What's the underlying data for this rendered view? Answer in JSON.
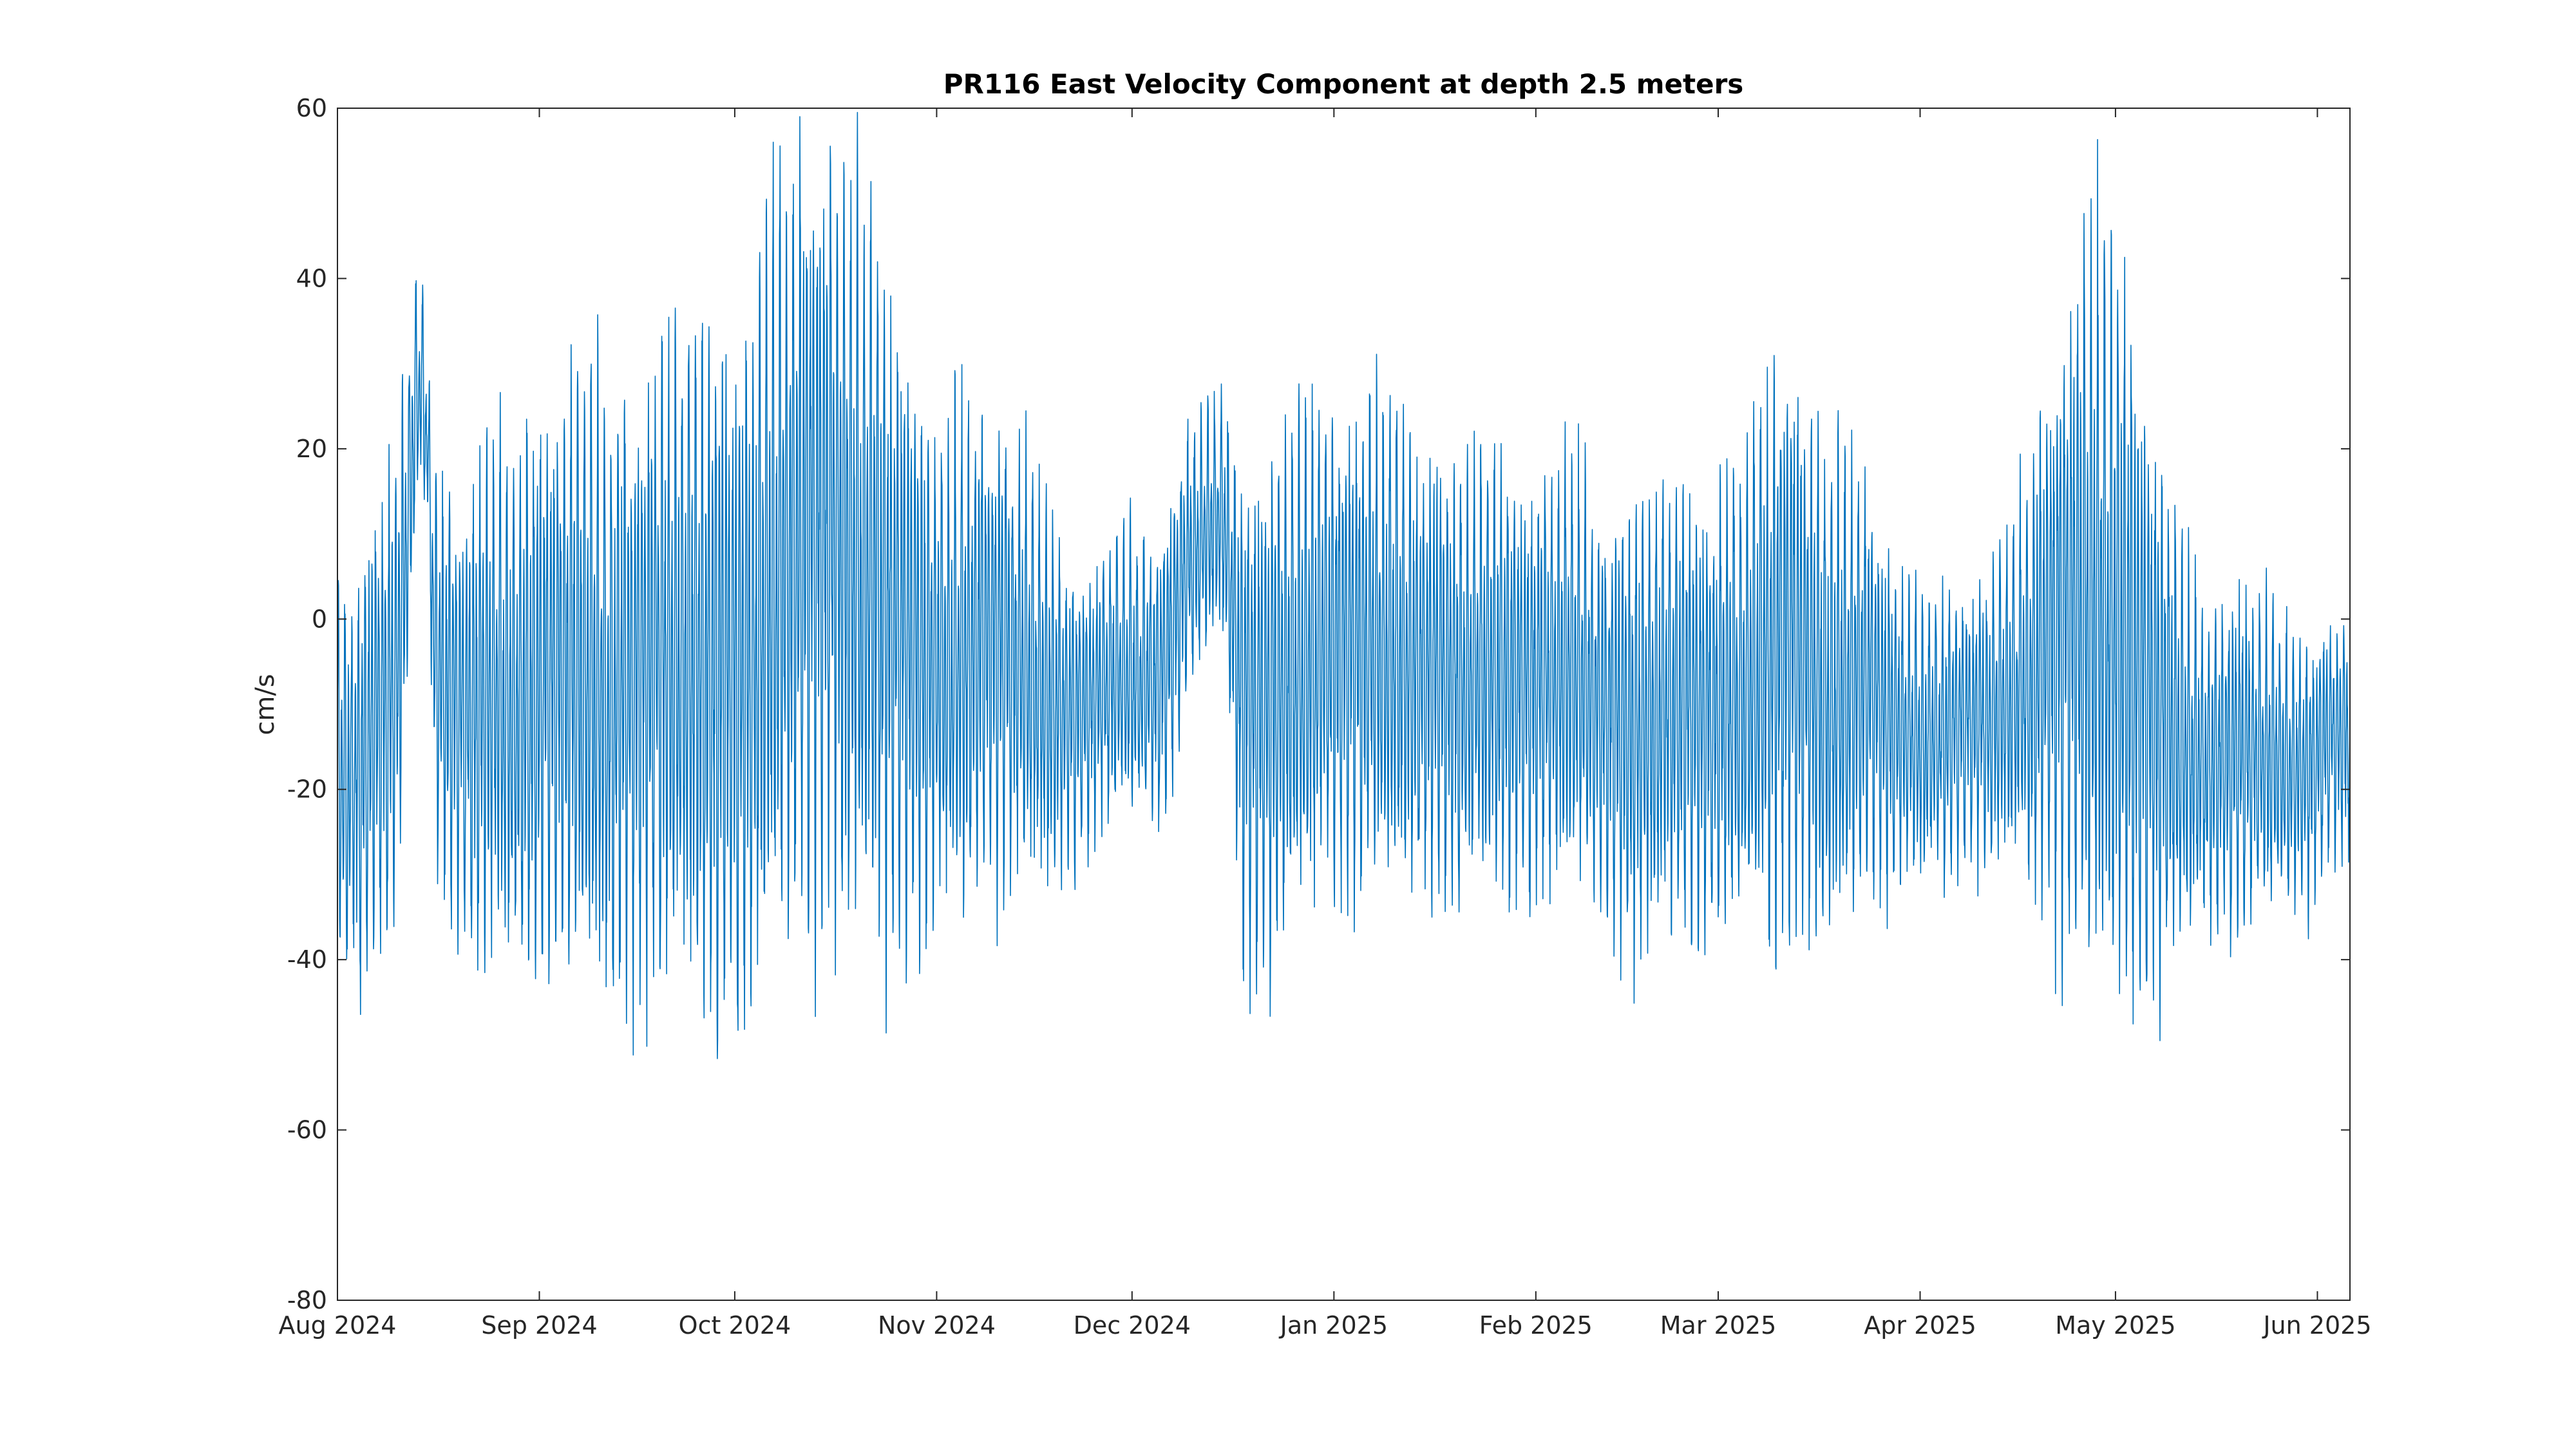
{
  "chart_data": {
    "type": "line",
    "title": "PR116 East Velocity Component at depth 2.5 meters",
    "xlabel": "",
    "ylabel": "cm/s",
    "ylim": [
      -80,
      60
    ],
    "yticks": [
      -80,
      -60,
      -40,
      -20,
      0,
      20,
      40,
      60
    ],
    "xlim": [
      "2024-08-01",
      "2025-06-06"
    ],
    "xticks": [
      {
        "date": "2024-08-01",
        "label": "Aug 2024"
      },
      {
        "date": "2024-09-01",
        "label": "Sep 2024"
      },
      {
        "date": "2024-10-01",
        "label": "Oct 2024"
      },
      {
        "date": "2024-11-01",
        "label": "Nov 2024"
      },
      {
        "date": "2024-12-01",
        "label": "Dec 2024"
      },
      {
        "date": "2025-01-01",
        "label": "Jan 2025"
      },
      {
        "date": "2025-02-01",
        "label": "Feb 2025"
      },
      {
        "date": "2025-03-01",
        "label": "Mar 2025"
      },
      {
        "date": "2025-04-01",
        "label": "Apr 2025"
      },
      {
        "date": "2025-05-01",
        "label": "May 2025"
      },
      {
        "date": "2025-06-01",
        "label": "Jun 2025"
      }
    ],
    "grid": false,
    "series_color": "#0072BD",
    "series": [
      {
        "x": [
          "2024-08-01",
          "2024-08-04",
          "2024-08-07",
          "2024-08-10",
          "2024-08-13",
          "2024-08-14",
          "2024-08-15",
          "2024-08-16",
          "2024-08-19",
          "2024-08-22",
          "2024-08-25",
          "2024-08-28",
          "2024-08-31",
          "2024-09-03",
          "2024-09-06",
          "2024-09-09",
          "2024-09-12",
          "2024-09-15",
          "2024-09-18",
          "2024-09-21",
          "2024-09-24",
          "2024-09-27",
          "2024-09-30",
          "2024-10-01",
          "2024-10-04",
          "2024-10-07",
          "2024-10-10",
          "2024-10-13",
          "2024-10-16",
          "2024-10-19",
          "2024-10-22",
          "2024-10-25",
          "2024-10-28",
          "2024-10-31",
          "2024-11-03",
          "2024-11-06",
          "2024-11-09",
          "2024-11-12",
          "2024-11-15",
          "2024-11-18",
          "2024-11-21",
          "2024-11-24",
          "2024-11-27",
          "2024-11-30",
          "2024-12-03",
          "2024-12-06",
          "2024-12-09",
          "2024-12-12",
          "2024-12-15",
          "2024-12-18",
          "2024-12-21",
          "2024-12-24",
          "2024-12-27",
          "2024-12-30",
          "2025-01-02",
          "2025-01-05",
          "2025-01-08",
          "2025-01-11",
          "2025-01-14",
          "2025-01-17",
          "2025-01-20",
          "2025-01-23",
          "2025-01-26",
          "2025-01-29",
          "2025-02-01",
          "2025-02-04",
          "2025-02-07",
          "2025-02-10",
          "2025-02-13",
          "2025-02-16",
          "2025-02-19",
          "2025-02-22",
          "2025-02-25",
          "2025-02-28",
          "2025-03-03",
          "2025-03-06",
          "2025-03-09",
          "2025-03-12",
          "2025-03-15",
          "2025-03-18",
          "2025-03-21",
          "2025-03-24",
          "2025-03-27",
          "2025-03-30",
          "2025-04-02",
          "2025-04-05",
          "2025-04-08",
          "2025-04-11",
          "2025-04-14",
          "2025-04-17",
          "2025-04-20",
          "2025-04-23",
          "2025-04-26",
          "2025-04-29",
          "2025-05-01",
          "2025-05-04",
          "2025-05-07",
          "2025-05-10",
          "2025-05-13",
          "2025-05-16",
          "2025-05-19",
          "2025-05-22",
          "2025-05-25",
          "2025-05-28",
          "2025-05-31",
          "2025-06-03",
          "2025-06-05"
        ],
        "center": [
          -18,
          -20,
          -12,
          -8,
          25,
          28,
          18,
          -6,
          -10,
          -12,
          -8,
          -12,
          -10,
          -8,
          -6,
          -8,
          -10,
          -8,
          -6,
          -5,
          -4,
          -6,
          -6,
          -8,
          -4,
          5,
          8,
          10,
          10,
          8,
          4,
          0,
          -4,
          -6,
          -6,
          -4,
          -2,
          -4,
          -6,
          -10,
          -12,
          -10,
          -8,
          -6,
          -8,
          -6,
          5,
          10,
          12,
          -10,
          -12,
          -8,
          -6,
          -4,
          -4,
          -4,
          -4,
          -4,
          -6,
          -6,
          -8,
          -6,
          -6,
          -8,
          -8,
          -6,
          -6,
          -10,
          -12,
          -14,
          -12,
          -10,
          -10,
          -12,
          -10,
          -8,
          -4,
          -2,
          -6,
          -10,
          -8,
          -6,
          -12,
          -14,
          -14,
          -14,
          -12,
          -12,
          -10,
          -8,
          -4,
          0,
          2,
          2,
          -2,
          -6,
          -10,
          -14,
          -16,
          -18,
          -16,
          -16,
          -16,
          -18,
          -18,
          -14,
          -14
        ],
        "amplitude": [
          22,
          24,
          26,
          26,
          14,
          12,
          10,
          22,
          26,
          28,
          28,
          30,
          32,
          32,
          34,
          34,
          34,
          34,
          36,
          36,
          38,
          40,
          40,
          40,
          40,
          42,
          42,
          44,
          44,
          44,
          42,
          38,
          34,
          30,
          28,
          28,
          28,
          26,
          24,
          22,
          18,
          16,
          16,
          16,
          16,
          18,
          16,
          14,
          14,
          28,
          30,
          30,
          28,
          28,
          28,
          28,
          28,
          28,
          26,
          26,
          26,
          26,
          24,
          24,
          24,
          24,
          24,
          24,
          24,
          26,
          26,
          26,
          26,
          26,
          26,
          28,
          32,
          34,
          30,
          28,
          26,
          24,
          20,
          16,
          16,
          16,
          16,
          16,
          18,
          22,
          30,
          36,
          40,
          42,
          42,
          38,
          32,
          26,
          20,
          20,
          20,
          18,
          18,
          16,
          16,
          14,
          14
        ]
      }
    ]
  }
}
